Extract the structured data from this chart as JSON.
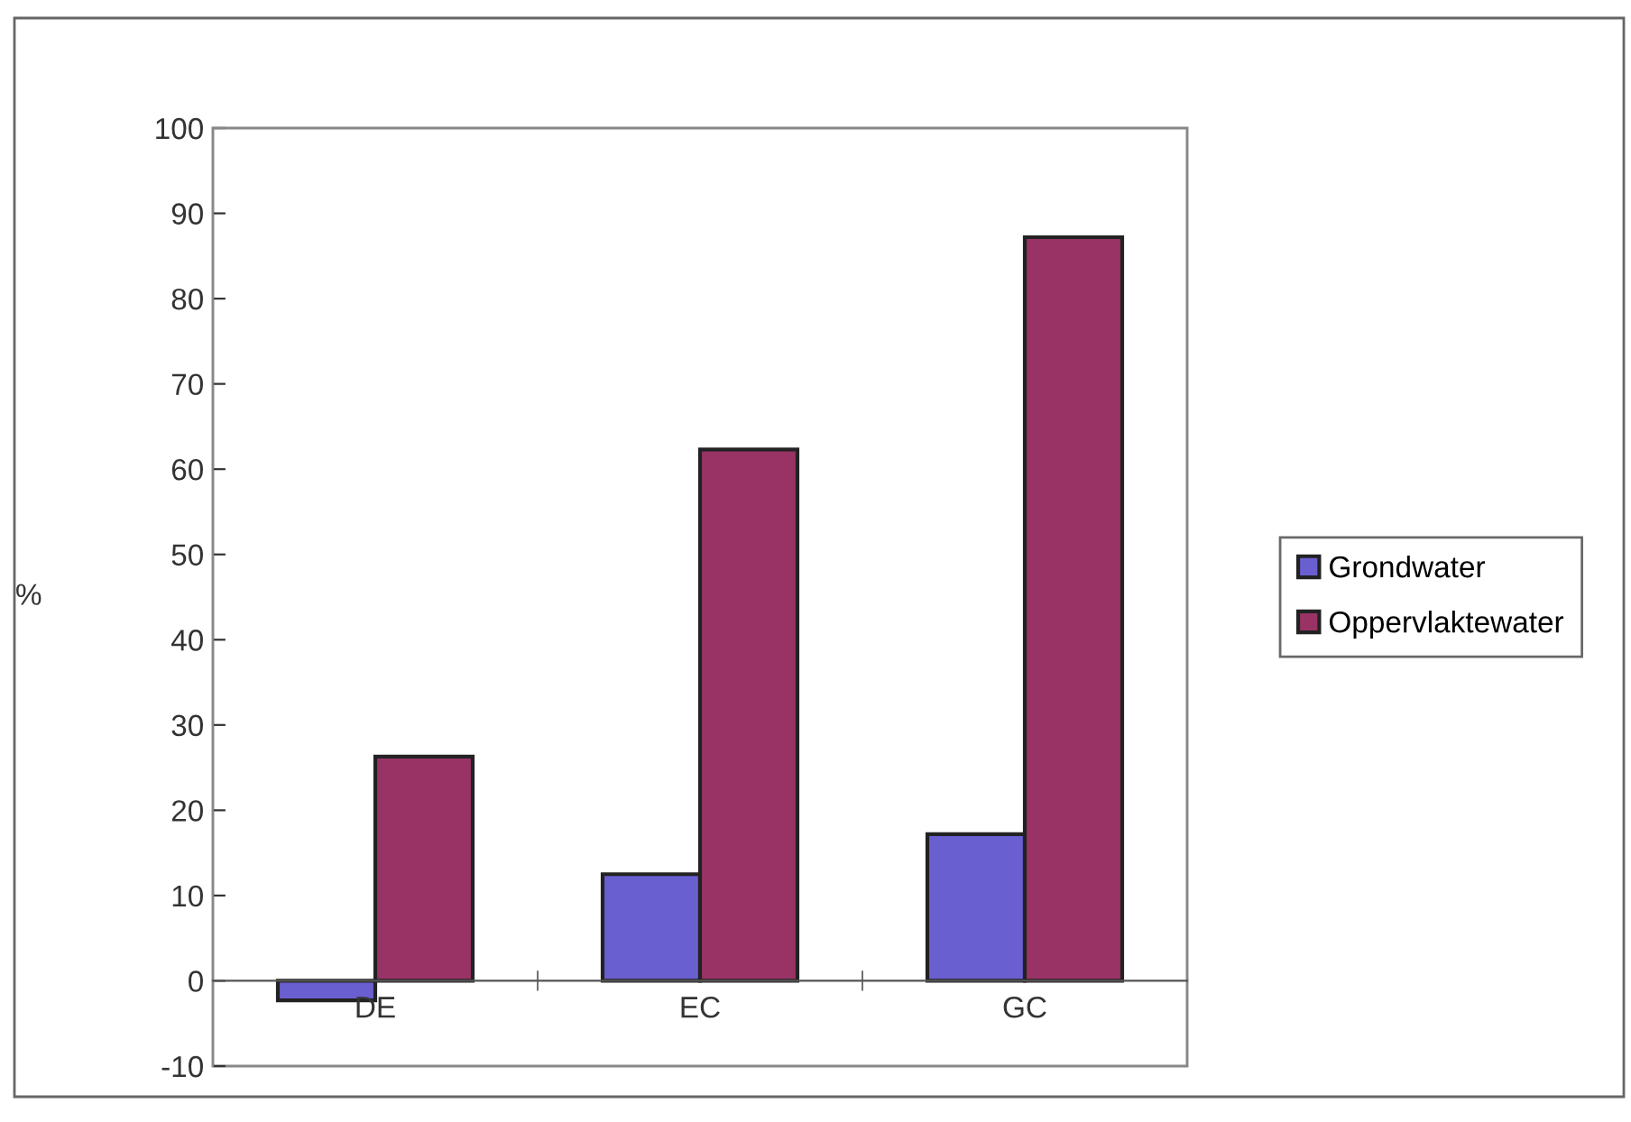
{
  "chart_data": {
    "type": "bar",
    "ylabel": "%",
    "categories": [
      "DE",
      "EC",
      "GC"
    ],
    "series": [
      {
        "name": "Grondwater",
        "color": "#6a5fd0",
        "values": [
          -2.3,
          12.5,
          17.2
        ]
      },
      {
        "name": "Oppervlaktewater",
        "color": "#993366",
        "values": [
          26.3,
          62.3,
          87.2
        ]
      }
    ],
    "ylim": [
      -10,
      100
    ],
    "yticks": [
      -10,
      0,
      10,
      20,
      30,
      40,
      50,
      60,
      70,
      80,
      90,
      100
    ],
    "grid": false,
    "legend": "right"
  }
}
